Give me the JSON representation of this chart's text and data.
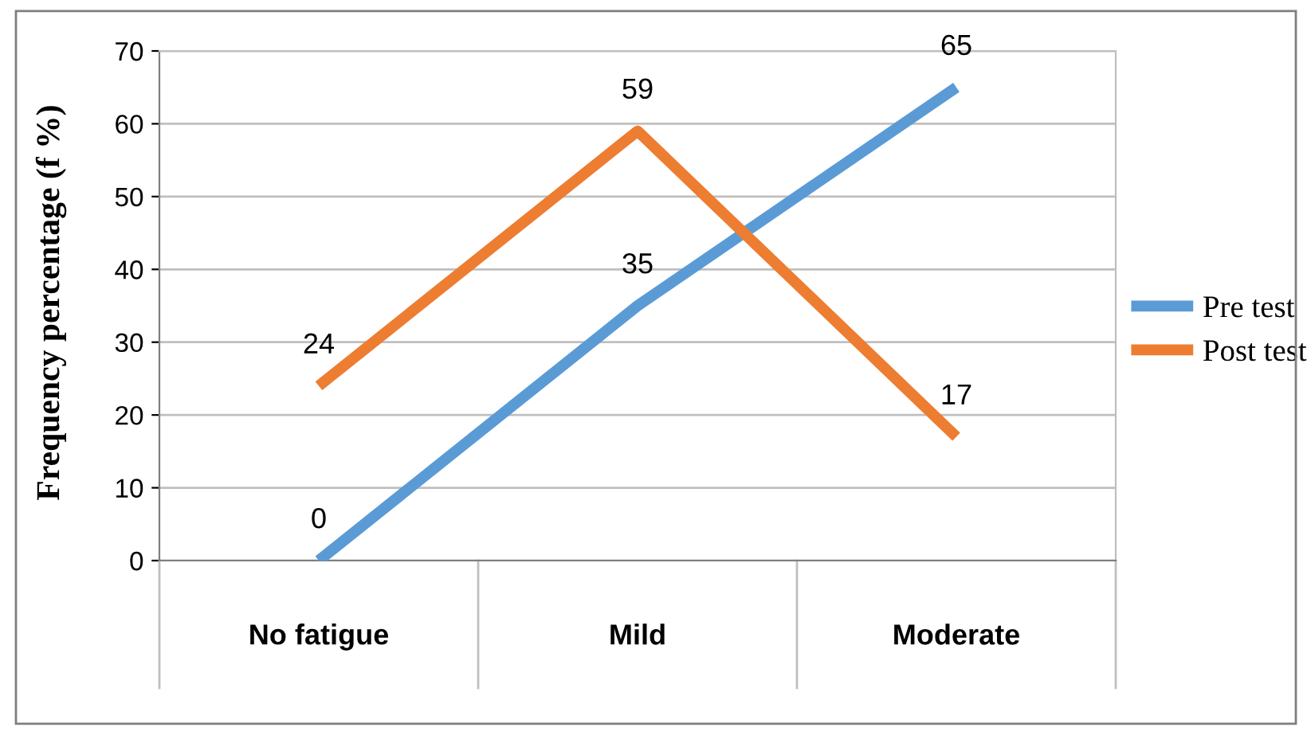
{
  "chart_data": {
    "type": "line",
    "ylabel": "Frequency percentage (f %)",
    "categories": [
      "No fatigue",
      "Mild",
      "Moderate"
    ],
    "series": [
      {
        "name": "Pre test",
        "color": "#5b9bd5",
        "values": [
          0,
          35,
          65
        ]
      },
      {
        "name": "Post test",
        "color": "#ed7d31",
        "values": [
          24,
          59,
          17
        ]
      }
    ],
    "ylim": [
      0,
      70
    ],
    "yticks": [
      0,
      10,
      20,
      30,
      40,
      50,
      60,
      70
    ],
    "grid": "y",
    "legend": "right",
    "data_labels": true,
    "marker": "none",
    "line_style": "solid"
  }
}
